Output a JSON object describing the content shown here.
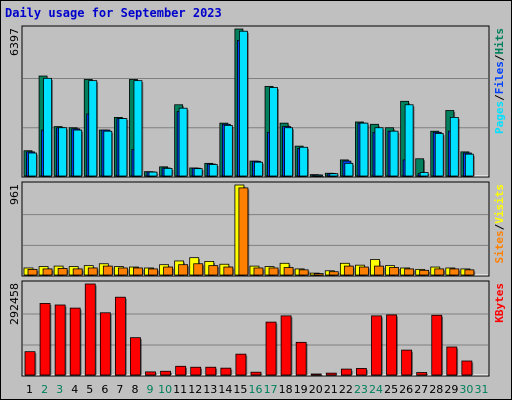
{
  "title": "Daily usage for September 2023",
  "colors": {
    "background": "#c0c0c0",
    "title": "#0000cc",
    "hits": "#00805c",
    "files": "#0040ff",
    "pages": "#00e0ff",
    "visits": "#ffff00",
    "sites": "#ff8000",
    "kbytes": "#ff0000",
    "weekend_day_label": "#00805c",
    "weekday_label": "#000000"
  },
  "chart_data": [
    {
      "type": "bar",
      "panel": "hits-files-pages",
      "max_label": "6397",
      "ylim": [
        0,
        6397
      ],
      "grid": true,
      "legend": [
        "Pages",
        "Files",
        "Hits"
      ],
      "legend_separator": "/",
      "categories": [
        "1",
        "2",
        "3",
        "4",
        "5",
        "6",
        "7",
        "8",
        "9",
        "10",
        "11",
        "12",
        "13",
        "14",
        "15",
        "16",
        "17",
        "18",
        "19",
        "20",
        "21",
        "22",
        "23",
        "24",
        "25",
        "26",
        "27",
        "28",
        "29",
        "30",
        "31"
      ],
      "series": [
        {
          "name": "Hits",
          "values": [
            1100,
            4350,
            2150,
            2100,
            4200,
            2000,
            2550,
            4200,
            190,
            400,
            3100,
            350,
            550,
            2300,
            6397,
            650,
            3900,
            2300,
            1300,
            60,
            120,
            700,
            2350,
            2250,
            2100,
            3250,
            750,
            1950,
            2850,
            1050,
            0
          ]
        },
        {
          "name": "Files",
          "values": [
            1050,
            2000,
            2100,
            2050,
            2700,
            2000,
            2500,
            1150,
            180,
            350,
            2800,
            340,
            520,
            2250,
            5900,
            640,
            1900,
            2150,
            1200,
            50,
            110,
            650,
            2300,
            1900,
            1950,
            700,
            100,
            1900,
            1950,
            1000,
            0
          ]
        },
        {
          "name": "Pages",
          "values": [
            1000,
            4250,
            2100,
            2000,
            4150,
            1950,
            2500,
            4150,
            170,
            330,
            2950,
            320,
            500,
            2200,
            6300,
            600,
            3850,
            2100,
            1250,
            40,
            100,
            550,
            2300,
            2100,
            1950,
            3100,
            150,
            1850,
            2550,
            950,
            0
          ]
        }
      ]
    },
    {
      "type": "bar",
      "panel": "visits-sites",
      "max_label": "961",
      "ylim": [
        0,
        961
      ],
      "grid": true,
      "legend": [
        "Sites",
        "Visits"
      ],
      "legend_separator": "/",
      "categories": [
        "1",
        "2",
        "3",
        "4",
        "5",
        "6",
        "7",
        "8",
        "9",
        "10",
        "11",
        "12",
        "13",
        "14",
        "15",
        "16",
        "17",
        "18",
        "19",
        "20",
        "21",
        "22",
        "23",
        "24",
        "25",
        "26",
        "27",
        "28",
        "29",
        "30",
        "31"
      ],
      "series": [
        {
          "name": "Visits",
          "values": [
            75,
            90,
            95,
            90,
            100,
            120,
            90,
            85,
            75,
            110,
            150,
            185,
            145,
            115,
            961,
            95,
            90,
            125,
            65,
            20,
            45,
            125,
            105,
            165,
            100,
            75,
            60,
            85,
            75,
            65,
            0
          ]
        },
        {
          "name": "Sites",
          "values": [
            60,
            65,
            70,
            65,
            75,
            95,
            75,
            75,
            65,
            85,
            110,
            120,
            100,
            85,
            930,
            75,
            75,
            80,
            55,
            15,
            35,
            95,
            85,
            95,
            80,
            65,
            50,
            65,
            65,
            55,
            0
          ]
        }
      ]
    },
    {
      "type": "bar",
      "panel": "kbytes",
      "max_label": "292458",
      "ylim": [
        0,
        292458
      ],
      "grid": true,
      "legend": [
        "KBytes"
      ],
      "categories": [
        "1",
        "2",
        "3",
        "4",
        "5",
        "6",
        "7",
        "8",
        "9",
        "10",
        "11",
        "12",
        "13",
        "14",
        "15",
        "16",
        "17",
        "18",
        "19",
        "20",
        "21",
        "22",
        "23",
        "24",
        "25",
        "26",
        "27",
        "28",
        "29",
        "30",
        "31"
      ],
      "series": [
        {
          "name": "KBytes",
          "values": [
            75000,
            230000,
            225000,
            215000,
            292458,
            200000,
            250000,
            120000,
            10000,
            12000,
            28000,
            25000,
            25000,
            22000,
            67000,
            9000,
            170000,
            190000,
            105000,
            2000,
            6000,
            19000,
            21000,
            190000,
            193000,
            80000,
            8000,
            192000,
            90000,
            45000,
            0
          ]
        }
      ]
    }
  ]
}
